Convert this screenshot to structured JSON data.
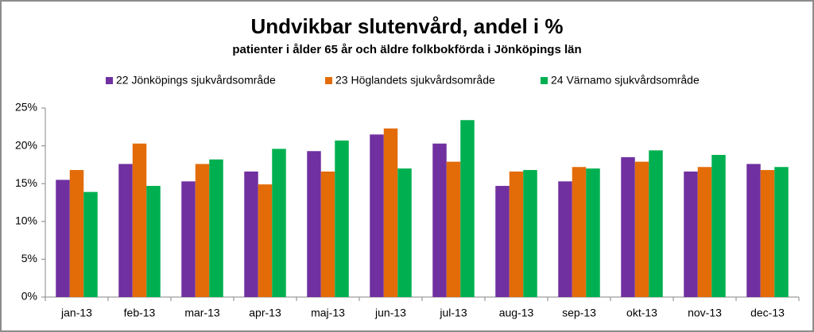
{
  "chart_data": {
    "type": "bar",
    "title": "Undvikbar slutenvård, andel i %",
    "subtitle": "patienter i ålder 65 år och äldre folkbokförda  i Jönköpings län",
    "categories": [
      "jan-13",
      "feb-13",
      "mar-13",
      "apr-13",
      "maj-13",
      "jun-13",
      "jul-13",
      "aug-13",
      "sep-13",
      "okt-13",
      "nov-13",
      "dec-13"
    ],
    "series": [
      {
        "name": "22 Jönköpings sjukvårdsområde",
        "color": "#7030a0",
        "values": [
          15.5,
          17.6,
          15.3,
          16.6,
          19.3,
          21.5,
          20.3,
          14.7,
          15.3,
          18.5,
          16.6,
          17.6
        ]
      },
      {
        "name": "23 Höglandets sjukvårdsområde",
        "color": "#e36c09",
        "values": [
          16.8,
          20.3,
          17.6,
          14.9,
          16.6,
          22.3,
          17.9,
          16.6,
          17.2,
          17.9,
          17.2,
          16.8
        ]
      },
      {
        "name": "24 Värnamo sjukvårdsområde",
        "color": "#00b050",
        "values": [
          13.9,
          14.7,
          18.2,
          19.6,
          20.7,
          17.0,
          23.4,
          16.8,
          17.0,
          19.4,
          18.8,
          17.2
        ]
      }
    ],
    "ylim": [
      0,
      25
    ],
    "yticks": [
      {
        "value": 0,
        "label": "0%"
      },
      {
        "value": 5,
        "label": "5%"
      },
      {
        "value": 10,
        "label": "10%"
      },
      {
        "value": 15,
        "label": "15%"
      },
      {
        "value": 20,
        "label": "20%"
      },
      {
        "value": 25,
        "label": "25%"
      }
    ],
    "grid": false,
    "legend": "top"
  }
}
